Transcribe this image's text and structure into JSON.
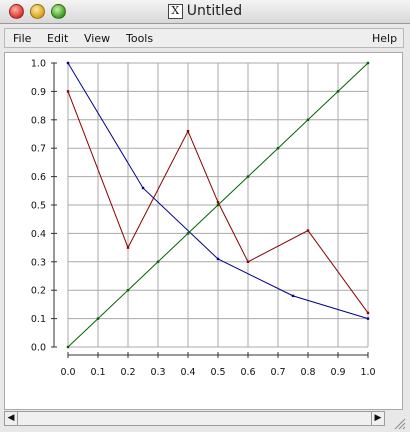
{
  "window": {
    "title": "Untitled",
    "x_glyph": "X"
  },
  "menus": [
    "File",
    "Edit",
    "View",
    "Tools",
    "Help"
  ],
  "icons": {
    "close": "close-button",
    "minimize": "minimize-button",
    "zoom": "zoom-button",
    "x11": "x11-icon",
    "scroll_left": "◀",
    "scroll_right": "▶"
  },
  "colors": {
    "series_red": "#8b0000",
    "series_blue": "#00008b",
    "series_green": "#006400",
    "grid": "#aaaaaa"
  },
  "chart_data": {
    "type": "line",
    "xlim": [
      0,
      1
    ],
    "ylim": [
      0,
      1
    ],
    "grid": true,
    "xticks": [
      "0.0",
      "0.1",
      "0.2",
      "0.3",
      "0.4",
      "0.5",
      "0.6",
      "0.7",
      "0.8",
      "0.9",
      "1.0"
    ],
    "yticks": [
      "0.0",
      "0.1",
      "0.2",
      "0.3",
      "0.4",
      "0.5",
      "0.6",
      "0.7",
      "0.8",
      "0.9",
      "1.0"
    ],
    "series": [
      {
        "color": "#8b0000",
        "x": [
          0.0,
          0.2,
          0.4,
          0.5,
          0.6,
          0.8,
          1.0
        ],
        "y": [
          0.9,
          0.35,
          0.76,
          0.51,
          0.3,
          0.41,
          0.12
        ]
      },
      {
        "color": "#00008b",
        "x": [
          0.0,
          0.25,
          0.5,
          0.75,
          1.0
        ],
        "y": [
          1.0,
          0.56,
          0.31,
          0.18,
          0.1
        ]
      },
      {
        "color": "#006400",
        "x": [
          0.0,
          0.1,
          0.2,
          0.3,
          0.4,
          0.5,
          0.6,
          0.7,
          0.8,
          0.9,
          1.0
        ],
        "y": [
          0.0,
          0.1,
          0.2,
          0.3,
          0.4,
          0.5,
          0.6,
          0.7,
          0.8,
          0.9,
          1.0
        ]
      }
    ]
  }
}
